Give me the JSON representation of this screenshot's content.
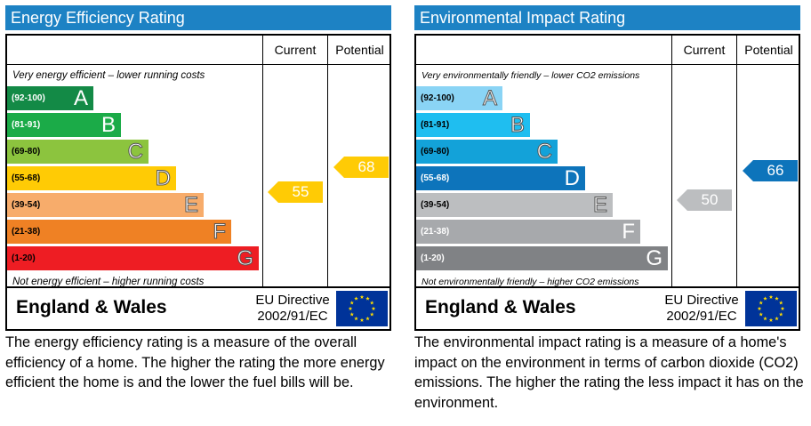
{
  "chart_data": [
    {
      "type": "bar",
      "title": "Energy Efficiency Rating",
      "columns": [
        "Current",
        "Potential"
      ],
      "top_note": "Very energy efficient – lower running costs",
      "bottom_note": "Not energy efficient – higher running costs",
      "bands": [
        {
          "range": "(92-100)",
          "letter": "A",
          "color": "#138a46",
          "range_color": "#ffffff"
        },
        {
          "range": "(81-91)",
          "letter": "B",
          "color": "#1bab48",
          "range_color": "#ffffff"
        },
        {
          "range": "(69-80)",
          "letter": "C",
          "color": "#8cc43e",
          "range_color": "#000000"
        },
        {
          "range": "(55-68)",
          "letter": "D",
          "color": "#ffcb05",
          "range_color": "#000000"
        },
        {
          "range": "(39-54)",
          "letter": "E",
          "color": "#f7ac6b",
          "range_color": "#000000"
        },
        {
          "range": "(21-38)",
          "letter": "F",
          "color": "#ef8124",
          "range_color": "#000000"
        },
        {
          "range": "(1-20)",
          "letter": "G",
          "color": "#ee1d23",
          "range_color": "#000000"
        }
      ],
      "current": {
        "value": 55,
        "band": "D",
        "color": "#ffcb05"
      },
      "potential": {
        "value": 68,
        "band": "D",
        "color": "#ffcb05"
      },
      "region": "England & Wales",
      "directive": [
        "EU Directive",
        "2002/91/EC"
      ],
      "description": "The energy efficiency rating is a measure of the overall efficiency of a home.  The higher the rating the more energy efficient the home is and the lower the fuel bills will be."
    },
    {
      "type": "bar",
      "title": "Environmental Impact Rating",
      "columns": [
        "Current",
        "Potential"
      ],
      "top_note": "Very environmentally friendly – lower CO2 emissions",
      "bottom_note": "Not environmentally friendly – higher CO2 emissions",
      "bands": [
        {
          "range": "(92-100)",
          "letter": "A",
          "color": "#8ad4f5",
          "range_color": "#000000"
        },
        {
          "range": "(81-91)",
          "letter": "B",
          "color": "#1fbef0",
          "range_color": "#000000"
        },
        {
          "range": "(69-80)",
          "letter": "C",
          "color": "#13a2d9",
          "range_color": "#000000"
        },
        {
          "range": "(55-68)",
          "letter": "D",
          "color": "#0d74bb",
          "range_color": "#ffffff"
        },
        {
          "range": "(39-54)",
          "letter": "E",
          "color": "#bcbec0",
          "range_color": "#000000"
        },
        {
          "range": "(21-38)",
          "letter": "F",
          "color": "#a7a9ac",
          "range_color": "#ffffff"
        },
        {
          "range": "(1-20)",
          "letter": "G",
          "color": "#808285",
          "range_color": "#ffffff"
        }
      ],
      "current": {
        "value": 50,
        "band": "E",
        "color": "#bcbec0"
      },
      "potential": {
        "value": 66,
        "band": "D",
        "color": "#0d74bb"
      },
      "region": "England & Wales",
      "directive": [
        "EU Directive",
        "2002/91/EC"
      ],
      "description": "The environmental impact rating is a measure of a home's impact on the environment in terms of carbon dioxide (CO2) emissions.  The higher the rating the less impact it has on the environment."
    }
  ],
  "colors": {
    "header": "#1d82c4",
    "eu_flag": "#003399",
    "eu_stars": "#ffdd00"
  }
}
